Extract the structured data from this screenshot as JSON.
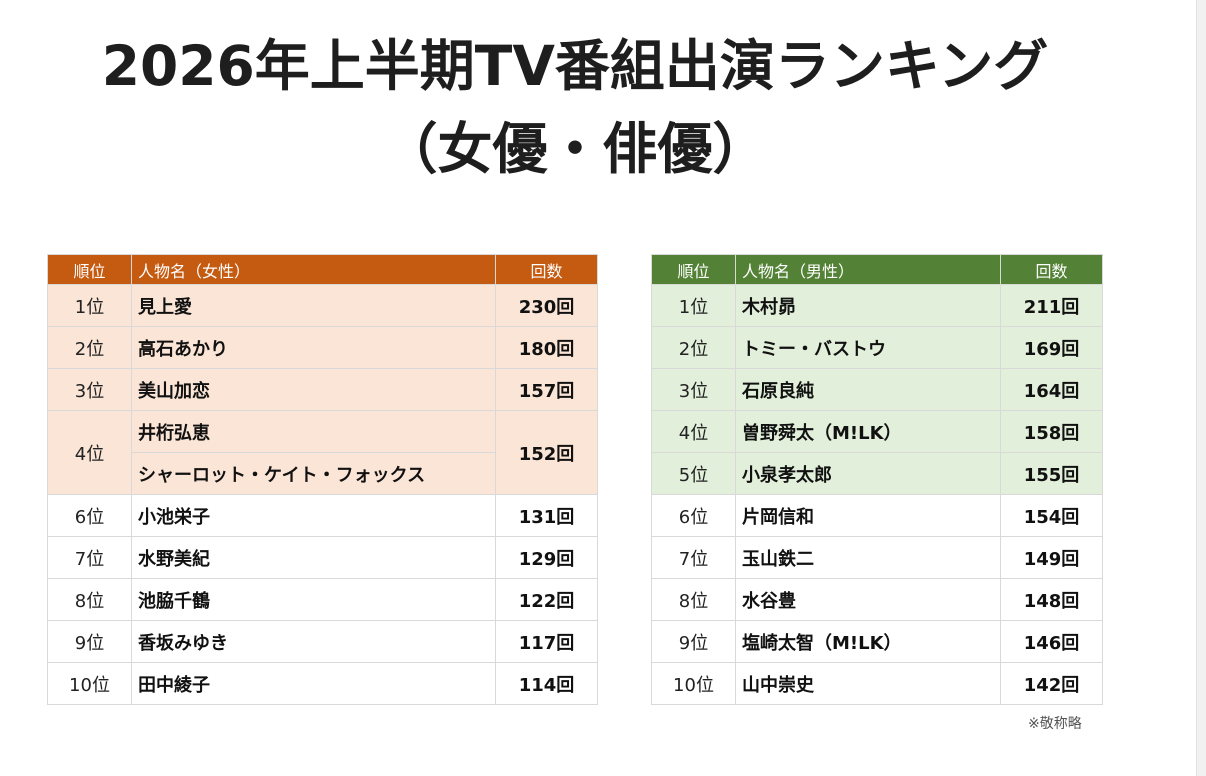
{
  "title": {
    "line1": "2026年上半期TV番組出演ランキング",
    "line2": "（女優・俳優）"
  },
  "female_table": {
    "headers": [
      "順位",
      "人物名（女性）",
      "回数"
    ],
    "rows": [
      {
        "rank": "1位",
        "names": [
          "見上愛"
        ],
        "count": "230回",
        "highlight": true
      },
      {
        "rank": "2位",
        "names": [
          "高石あかり"
        ],
        "count": "180回",
        "highlight": true
      },
      {
        "rank": "3位",
        "names": [
          "美山加恋"
        ],
        "count": "157回",
        "highlight": true
      },
      {
        "rank": "4位",
        "names": [
          "井桁弘恵",
          "シャーロット・ケイト・フォックス"
        ],
        "count": "152回",
        "highlight": true
      },
      {
        "rank": "6位",
        "names": [
          "小池栄子"
        ],
        "count": "131回",
        "highlight": false
      },
      {
        "rank": "7位",
        "names": [
          "水野美紀"
        ],
        "count": "129回",
        "highlight": false
      },
      {
        "rank": "8位",
        "names": [
          "池脇千鶴"
        ],
        "count": "122回",
        "highlight": false
      },
      {
        "rank": "9位",
        "names": [
          "香坂みゆき"
        ],
        "count": "117回",
        "highlight": false
      },
      {
        "rank": "10位",
        "names": [
          "田中綾子"
        ],
        "count": "114回",
        "highlight": false
      }
    ]
  },
  "male_table": {
    "headers": [
      "順位",
      "人物名（男性）",
      "回数"
    ],
    "rows": [
      {
        "rank": "1位",
        "names": [
          "木村昴"
        ],
        "count": "211回",
        "highlight": true
      },
      {
        "rank": "2位",
        "names": [
          "トミー・バストウ"
        ],
        "count": "169回",
        "highlight": true
      },
      {
        "rank": "3位",
        "names": [
          "石原良純"
        ],
        "count": "164回",
        "highlight": true
      },
      {
        "rank": "4位",
        "names": [
          "曽野舜太（M!LK）"
        ],
        "count": "158回",
        "highlight": true
      },
      {
        "rank": "5位",
        "names": [
          "小泉孝太郎"
        ],
        "count": "155回",
        "highlight": true
      },
      {
        "rank": "6位",
        "names": [
          "片岡信和"
        ],
        "count": "154回",
        "highlight": false
      },
      {
        "rank": "7位",
        "names": [
          "玉山鉄二"
        ],
        "count": "149回",
        "highlight": false
      },
      {
        "rank": "8位",
        "names": [
          "水谷豊"
        ],
        "count": "148回",
        "highlight": false
      },
      {
        "rank": "9位",
        "names": [
          "塩崎太智（M!LK）"
        ],
        "count": "146回",
        "highlight": false
      },
      {
        "rank": "10位",
        "names": [
          "山中崇史"
        ],
        "count": "142回",
        "highlight": false
      }
    ]
  },
  "note": "※敬称略",
  "colors": {
    "female_header": "#c55a11",
    "female_highlight": "#fbe5d6",
    "male_header": "#538135",
    "male_highlight": "#e2efda"
  }
}
